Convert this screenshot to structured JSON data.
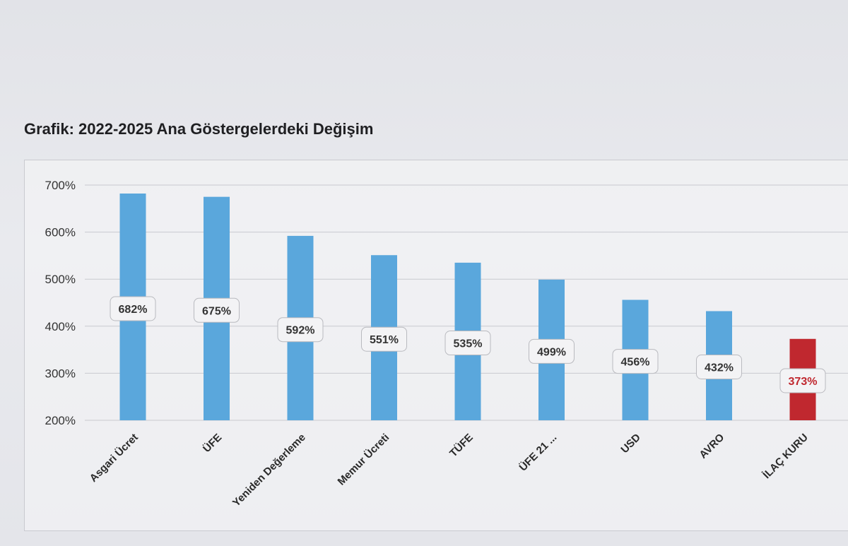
{
  "title": "Grafik: 2022-2025 Ana Göstergelerdeki Değişim",
  "colors": {
    "bar": "#5aa7dc",
    "highlight": "#c0282f",
    "grid": "#c8c9cf",
    "label_text": "#333333"
  },
  "chart_data": {
    "type": "bar",
    "title": "Grafik: 2022-2025 Ana Göstergelerdeki Değişim",
    "categories": [
      "Asgari Ücret",
      "ÜFE",
      "Yeniden Değerleme",
      "Memur Ücreti",
      "TÜFE",
      "ÜFE 21 ...",
      "USD",
      "AVRO",
      "İLAÇ KURU"
    ],
    "values": [
      682,
      675,
      592,
      551,
      535,
      499,
      456,
      432,
      373
    ],
    "data_labels": [
      "682%",
      "675%",
      "592%",
      "551%",
      "535%",
      "499%",
      "456%",
      "432%",
      "373%"
    ],
    "highlight_index": 8,
    "ylim": [
      200,
      700
    ],
    "yticks": [
      200,
      300,
      400,
      500,
      600,
      700
    ],
    "ytick_labels": [
      "200%",
      "300%",
      "400%",
      "500%",
      "600%",
      "700%"
    ],
    "xlabel": "",
    "ylabel": "",
    "grid": true
  }
}
